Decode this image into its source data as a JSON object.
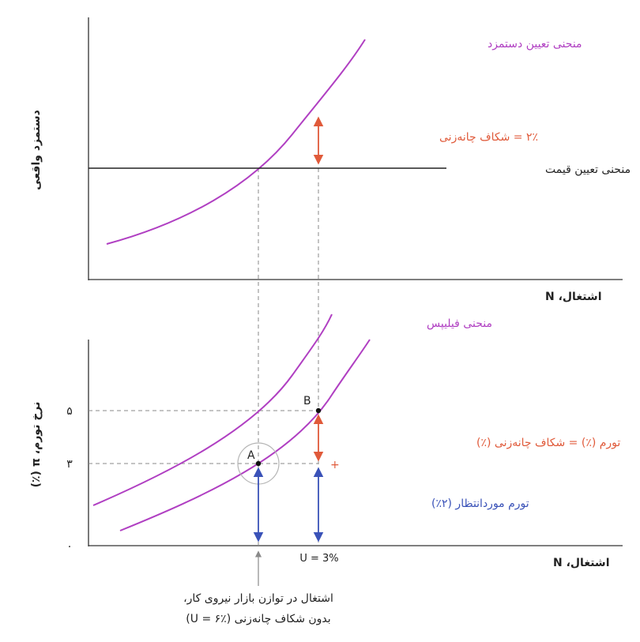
{
  "colors": {
    "wage_curve": "#b03fc2",
    "phillips": "#b03fc2",
    "price_line": "#222222",
    "markup_arrow": "#e05a3a",
    "expected_arrow": "#3a52b8",
    "axis": "#333333",
    "grid": "#8a8a8a",
    "text": "#222222"
  },
  "chart_data": [
    {
      "type": "line",
      "panel": "labour-market",
      "ylabel": "دستمزد واقعی",
      "xlabel": "اشتغال، N",
      "series": [
        {
          "name": "منحنی تعیین دستمزد",
          "kind": "upward-curve"
        },
        {
          "name": "منحنی تعیین قیمت",
          "kind": "horizontal-line"
        }
      ],
      "annotations": {
        "markup_gap": "۲٪ = شکاف چانه‌زنی"
      }
    },
    {
      "type": "line",
      "panel": "phillips",
      "ylabel": "نرخ تورم، π (٪)",
      "xlabel": "اشتغال، N",
      "yticks": [
        "۵",
        "۳",
        "۰"
      ],
      "y_values": [
        5,
        3,
        0
      ],
      "ylim": [
        0,
        7
      ],
      "series": [
        {
          "name": "منحنی فیلیپس",
          "kind": "upper-curve"
        },
        {
          "name": "",
          "kind": "lower-curve"
        }
      ],
      "points": [
        {
          "label": "A",
          "inflation": 3
        },
        {
          "label": "B",
          "inflation": 5
        }
      ],
      "x_marker": "U = 3%",
      "annotations": {
        "markup_inflation": "تورم (٪) = شکاف چانه‌زنی (٪)",
        "plus_sign": "+",
        "expected_inflation": "تورم موردانتظار (۲٪)"
      }
    }
  ],
  "caption": {
    "line1": "اشتغال در توازن بازار نیروی کار،",
    "line2": "بدون شکاف چانه‌زنی (U = ۶٪)"
  }
}
